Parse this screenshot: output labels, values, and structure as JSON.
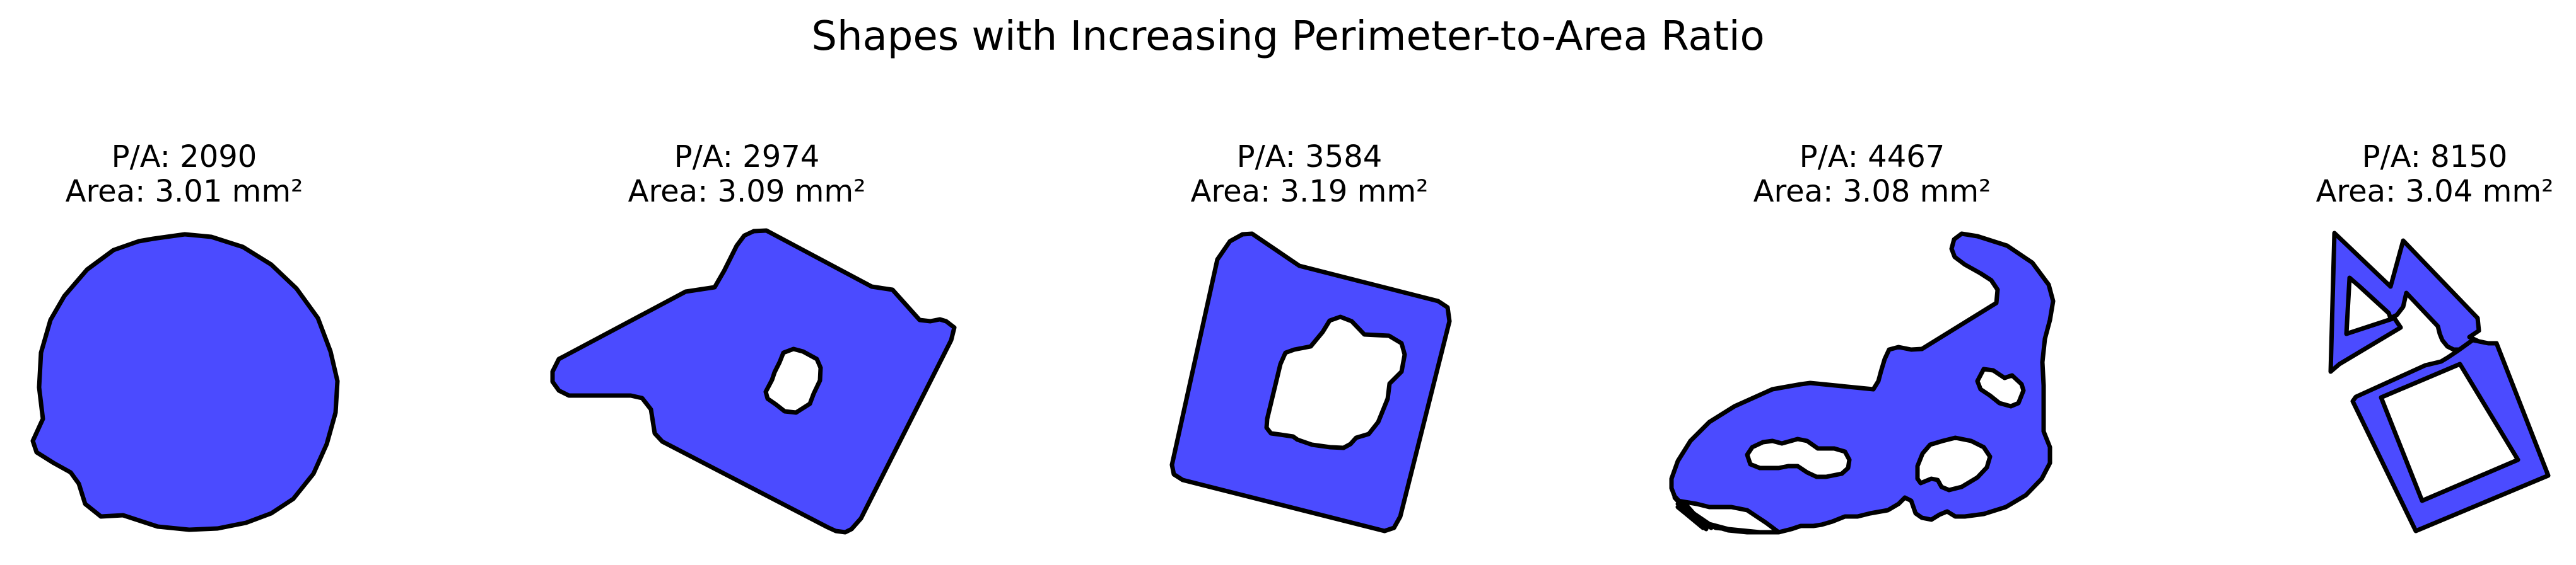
{
  "chart_data": {
    "type": "shape-gallery",
    "title": "Shapes with Increasing Perimeter-to-Area Ratio",
    "fill_color": "#4b4bff",
    "stroke_color": "#000000",
    "panels": [
      {
        "ratio_label": "P/A: 2090",
        "area_label": "Area: 3.01 mm²",
        "pa_ratio": 2090,
        "area_mm2": 3.01,
        "shape": "blob"
      },
      {
        "ratio_label": "P/A: 2974",
        "area_label": "Area: 3.09 mm²",
        "pa_ratio": 2974,
        "area_mm2": 3.09,
        "shape": "polygon with one hole"
      },
      {
        "ratio_label": "P/A: 3584",
        "area_label": "Area: 3.19 mm²",
        "pa_ratio": 3584,
        "area_mm2": 3.19,
        "shape": "square with large hole"
      },
      {
        "ratio_label": "P/A: 4467",
        "area_label": "Area: 3.08 mm²",
        "pa_ratio": 4467,
        "area_mm2": 3.08,
        "shape": "irregular with three holes"
      },
      {
        "ratio_label": "P/A: 8150",
        "area_label": "Area: 3.04 mm²",
        "pa_ratio": 8150,
        "area_mm2": 3.04,
        "shape": "thin frames"
      }
    ]
  }
}
